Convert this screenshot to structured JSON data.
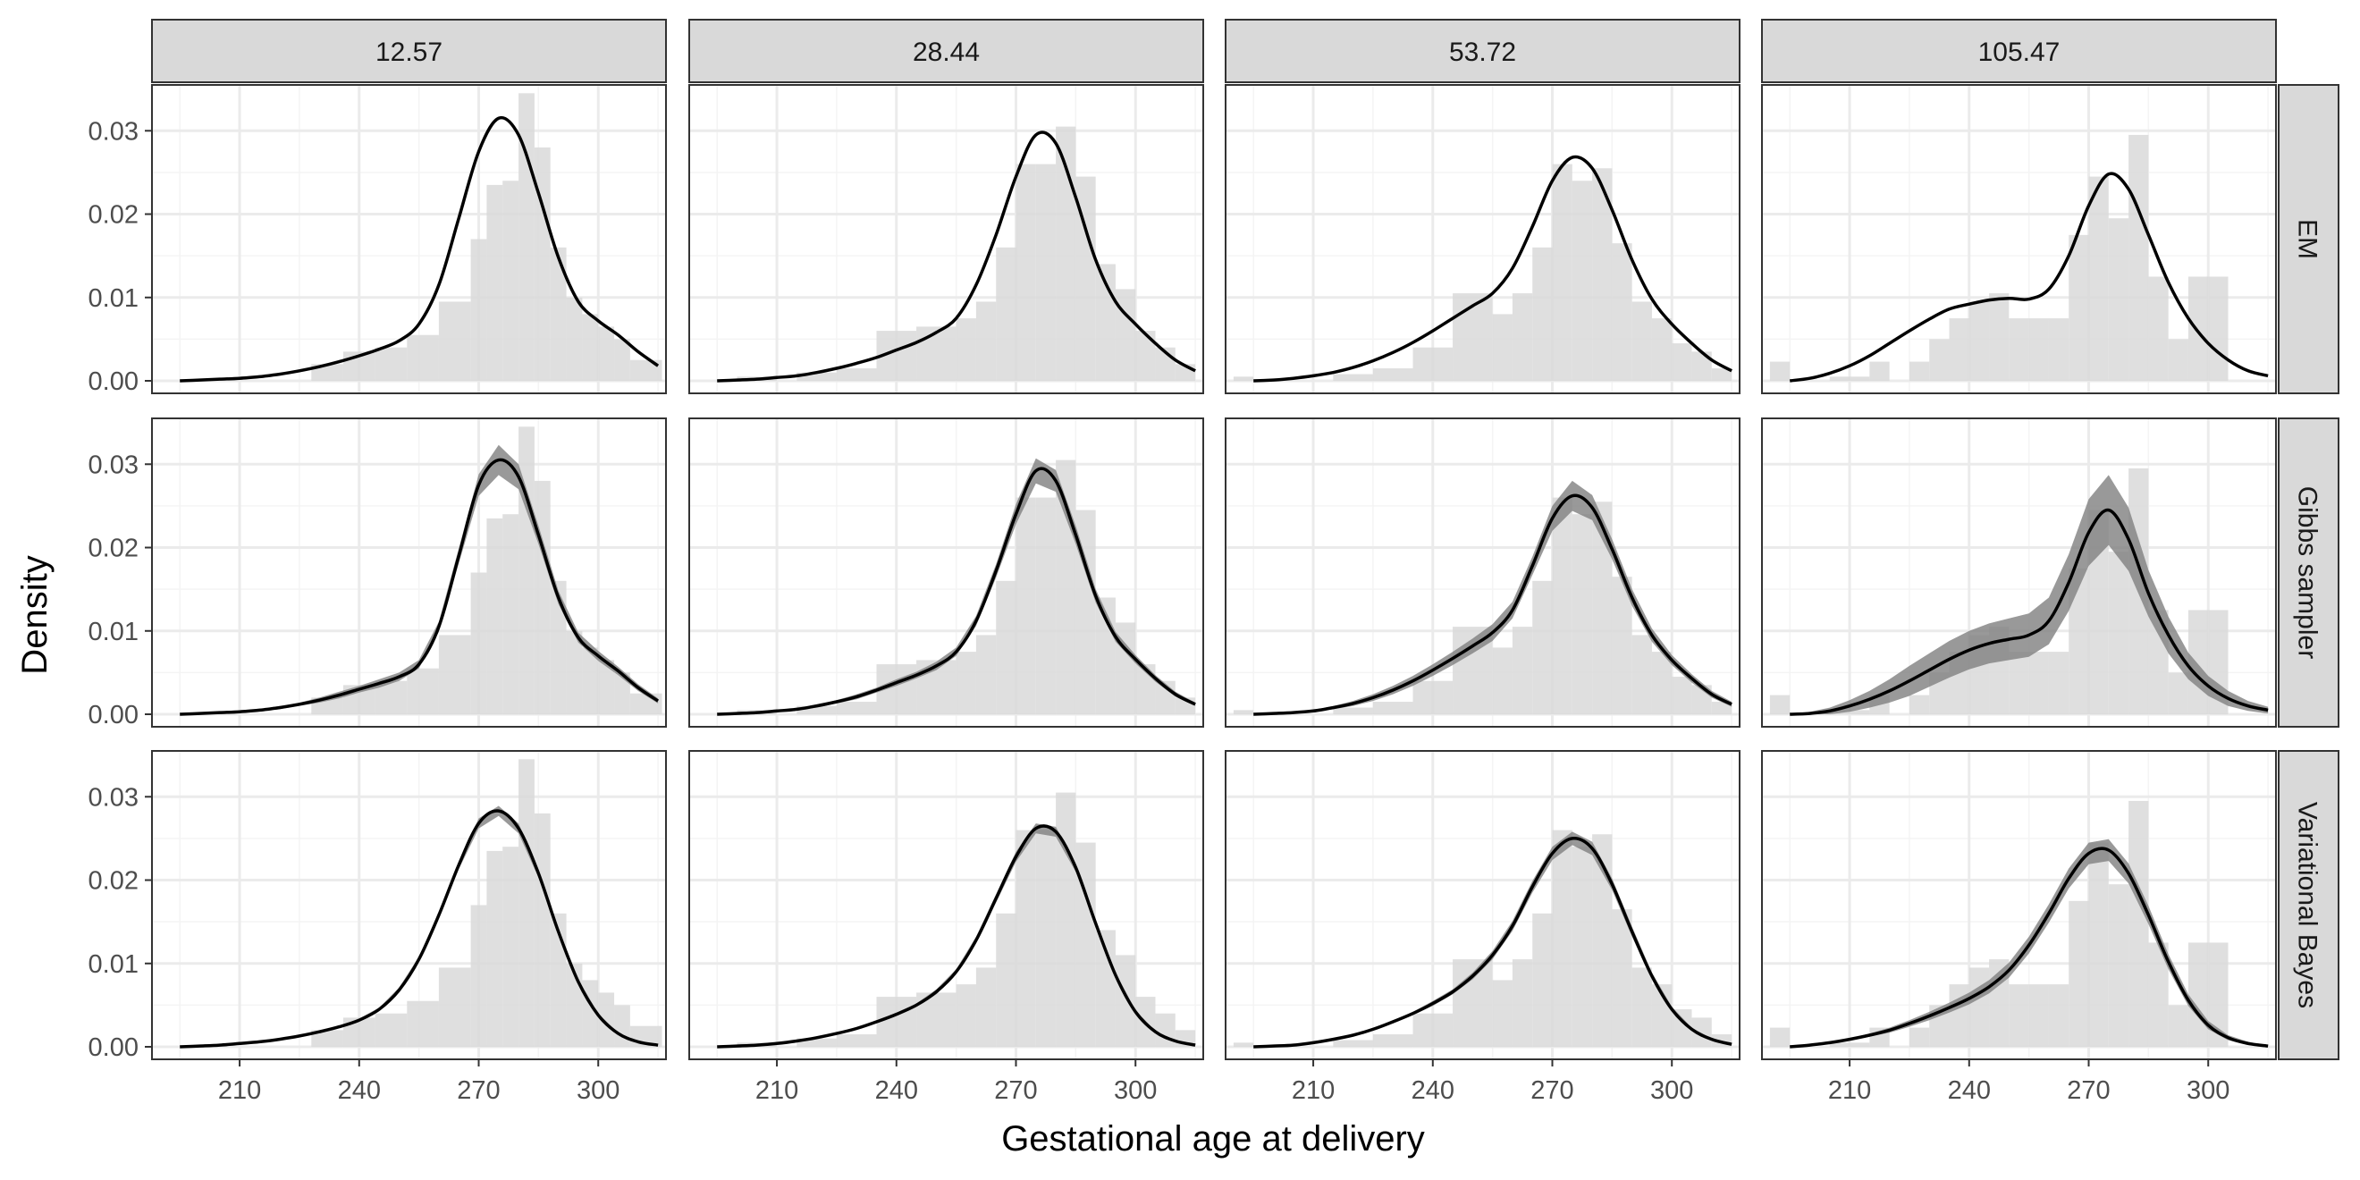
{
  "chart_data": {
    "type": "histogram-density-facets",
    "xlabel": "Gestational age at delivery",
    "ylabel": "Density",
    "columns": [
      "12.57",
      "28.44",
      "53.72",
      "105.47"
    ],
    "rows": [
      "EM",
      "Gibbs sampler",
      "Variational Bayes"
    ],
    "xlim": [
      188,
      317
    ],
    "ylim": [
      -0.0015,
      0.0355
    ],
    "x_ticks": [
      210,
      240,
      270,
      300
    ],
    "x_tick_labels": [
      "210",
      "240",
      "270",
      "300"
    ],
    "y_ticks": [
      0,
      0.01,
      0.02,
      0.03
    ],
    "y_tick_labels": [
      "0.00",
      "0.01",
      "0.02",
      "0.03"
    ],
    "grid": true,
    "colors": {
      "panel_border": "#333333",
      "strip_fill": "#d9d9d9",
      "grid_major": "#ebebeb",
      "grid_minor": "#f4f4f4",
      "histogram": "#d9d9d9",
      "band": "#7f7f7f",
      "curve": "#000000"
    },
    "histograms": [
      {
        "column": "12.57",
        "bins": [
          [
            228,
            236,
            0.002
          ],
          [
            236,
            244,
            0.0035
          ],
          [
            244,
            252,
            0.004
          ],
          [
            252,
            260,
            0.0055
          ],
          [
            260,
            268,
            0.0095
          ],
          [
            268,
            272,
            0.017
          ],
          [
            272,
            276,
            0.0235
          ],
          [
            276,
            280,
            0.024
          ],
          [
            280,
            284,
            0.0345
          ],
          [
            284,
            288,
            0.028
          ],
          [
            288,
            292,
            0.016
          ],
          [
            292,
            296,
            0.01
          ],
          [
            296,
            300,
            0.008
          ],
          [
            300,
            304,
            0.0065
          ],
          [
            304,
            308,
            0.005
          ],
          [
            308,
            316,
            0.0025
          ]
        ]
      },
      {
        "column": "28.44",
        "bins": [
          [
            200,
            210,
            0.0005
          ],
          [
            215,
            225,
            0.001
          ],
          [
            225,
            235,
            0.0015
          ],
          [
            235,
            245,
            0.006
          ],
          [
            245,
            255,
            0.0065
          ],
          [
            255,
            260,
            0.0075
          ],
          [
            260,
            265,
            0.0095
          ],
          [
            265,
            270,
            0.016
          ],
          [
            270,
            275,
            0.026
          ],
          [
            275,
            280,
            0.026
          ],
          [
            280,
            285,
            0.0305
          ],
          [
            285,
            290,
            0.0245
          ],
          [
            290,
            295,
            0.014
          ],
          [
            295,
            300,
            0.011
          ],
          [
            300,
            305,
            0.006
          ],
          [
            305,
            310,
            0.004
          ],
          [
            310,
            315,
            0.002
          ]
        ]
      },
      {
        "column": "53.72",
        "bins": [
          [
            190,
            195,
            0.0005
          ],
          [
            215,
            225,
            0.0008
          ],
          [
            225,
            235,
            0.0015
          ],
          [
            235,
            245,
            0.004
          ],
          [
            245,
            255,
            0.0105
          ],
          [
            255,
            260,
            0.008
          ],
          [
            260,
            265,
            0.0105
          ],
          [
            265,
            270,
            0.016
          ],
          [
            270,
            275,
            0.026
          ],
          [
            275,
            280,
            0.024
          ],
          [
            280,
            285,
            0.0255
          ],
          [
            285,
            290,
            0.0165
          ],
          [
            290,
            295,
            0.0095
          ],
          [
            295,
            300,
            0.0075
          ],
          [
            300,
            305,
            0.0045
          ],
          [
            305,
            310,
            0.0035
          ],
          [
            310,
            315,
            0.0015
          ]
        ]
      },
      {
        "column": "105.47",
        "bins": [
          [
            190,
            195,
            0.0023
          ],
          [
            205,
            210,
            0.0005
          ],
          [
            210,
            215,
            0.0005
          ],
          [
            215,
            220,
            0.0023
          ],
          [
            225,
            230,
            0.0023
          ],
          [
            230,
            235,
            0.005
          ],
          [
            235,
            240,
            0.0075
          ],
          [
            240,
            245,
            0.0095
          ],
          [
            245,
            250,
            0.0105
          ],
          [
            250,
            255,
            0.0075
          ],
          [
            255,
            260,
            0.0075
          ],
          [
            260,
            265,
            0.0075
          ],
          [
            265,
            270,
            0.0175
          ],
          [
            270,
            275,
            0.0245
          ],
          [
            275,
            280,
            0.0195
          ],
          [
            280,
            285,
            0.0295
          ],
          [
            285,
            290,
            0.0125
          ],
          [
            290,
            295,
            0.005
          ],
          [
            295,
            300,
            0.0125
          ],
          [
            300,
            305,
            0.0125
          ]
        ]
      }
    ],
    "curves": {
      "x": [
        195,
        200,
        205,
        210,
        215,
        220,
        225,
        230,
        235,
        240,
        245,
        250,
        255,
        260,
        265,
        270,
        275,
        280,
        285,
        290,
        295,
        300,
        305,
        310,
        315
      ],
      "EM": [
        [
          0,
          0.0001,
          0.0002,
          0.0003,
          0.0005,
          0.0008,
          0.0012,
          0.0017,
          0.0023,
          0.003,
          0.0038,
          0.0048,
          0.0068,
          0.0115,
          0.0195,
          0.0275,
          0.0315,
          0.0295,
          0.0225,
          0.0148,
          0.0095,
          0.0072,
          0.0055,
          0.0035,
          0.0018
        ],
        [
          0,
          0.0001,
          0.0002,
          0.0004,
          0.0006,
          0.001,
          0.0015,
          0.0021,
          0.0028,
          0.0037,
          0.0046,
          0.0058,
          0.0075,
          0.0115,
          0.0175,
          0.0245,
          0.0295,
          0.0285,
          0.022,
          0.0145,
          0.0095,
          0.0068,
          0.0045,
          0.0025,
          0.0012
        ],
        [
          0,
          0.0001,
          0.0003,
          0.0006,
          0.001,
          0.0016,
          0.0024,
          0.0034,
          0.0046,
          0.006,
          0.0075,
          0.009,
          0.0105,
          0.0135,
          0.0185,
          0.024,
          0.0268,
          0.0255,
          0.0205,
          0.0145,
          0.0098,
          0.0068,
          0.0045,
          0.0025,
          0.0012
        ],
        [
          0,
          0.0003,
          0.0009,
          0.0018,
          0.003,
          0.0045,
          0.006,
          0.0074,
          0.0086,
          0.0092,
          0.0097,
          0.0099,
          0.0098,
          0.011,
          0.015,
          0.021,
          0.0248,
          0.023,
          0.0175,
          0.0118,
          0.0075,
          0.0045,
          0.0025,
          0.0012,
          0.0006
        ]
      ],
      "Gibbs sampler": {
        "mean": [
          [
            0,
            0.0001,
            0.0002,
            0.0003,
            0.0005,
            0.0008,
            0.0012,
            0.0017,
            0.0023,
            0.003,
            0.0037,
            0.0045,
            0.006,
            0.0105,
            0.019,
            0.0275,
            0.0305,
            0.0285,
            0.0215,
            0.014,
            0.0092,
            0.007,
            0.0052,
            0.0032,
            0.0016
          ],
          [
            0,
            0.0001,
            0.0002,
            0.0004,
            0.0006,
            0.001,
            0.0015,
            0.0021,
            0.0029,
            0.0038,
            0.0047,
            0.0058,
            0.0075,
            0.0112,
            0.0172,
            0.024,
            0.0292,
            0.028,
            0.0215,
            0.0142,
            0.0093,
            0.0066,
            0.0043,
            0.0024,
            0.0012
          ],
          [
            0,
            0.0001,
            0.0002,
            0.0004,
            0.0008,
            0.0013,
            0.002,
            0.0029,
            0.004,
            0.0053,
            0.0067,
            0.0082,
            0.0098,
            0.0125,
            0.0178,
            0.0235,
            0.0262,
            0.0248,
            0.0198,
            0.014,
            0.0095,
            0.0065,
            0.0043,
            0.0024,
            0.0012
          ],
          [
            0,
            0.0001,
            0.0004,
            0.001,
            0.0018,
            0.0028,
            0.004,
            0.0053,
            0.0066,
            0.0077,
            0.0085,
            0.009,
            0.0095,
            0.0112,
            0.0158,
            0.0218,
            0.0245,
            0.021,
            0.0145,
            0.0095,
            0.0058,
            0.0034,
            0.0019,
            0.001,
            0.0005
          ]
        ],
        "half_width": [
          [
            0,
            0,
            0,
            0.0001,
            0.0001,
            0.0002,
            0.0002,
            0.0003,
            0.0004,
            0.0004,
            0.0005,
            0.0005,
            0.0005,
            0.0006,
            0.0009,
            0.0013,
            0.0018,
            0.0015,
            0.0011,
            0.0008,
            0.0006,
            0.0006,
            0.0005,
            0.0004,
            0.0003
          ],
          [
            0,
            0,
            0,
            0.0001,
            0.0001,
            0.0002,
            0.0002,
            0.0003,
            0.0003,
            0.0004,
            0.0004,
            0.0005,
            0.0005,
            0.0006,
            0.0008,
            0.0012,
            0.0015,
            0.0013,
            0.0011,
            0.0008,
            0.0006,
            0.0005,
            0.0004,
            0.0003,
            0.0002
          ],
          [
            0,
            0,
            0.0001,
            0.0001,
            0.0002,
            0.0003,
            0.0004,
            0.0005,
            0.0006,
            0.0007,
            0.0008,
            0.0009,
            0.001,
            0.001,
            0.0011,
            0.0015,
            0.0018,
            0.0015,
            0.0012,
            0.001,
            0.0008,
            0.0006,
            0.0005,
            0.0004,
            0.0003
          ],
          [
            0,
            0.0002,
            0.0004,
            0.0007,
            0.001,
            0.0014,
            0.0018,
            0.002,
            0.0022,
            0.0023,
            0.0024,
            0.0025,
            0.0026,
            0.0028,
            0.0034,
            0.004,
            0.0042,
            0.0038,
            0.0028,
            0.0022,
            0.0016,
            0.0012,
            0.0009,
            0.0006,
            0.0004
          ]
        ]
      },
      "Variational Bayes": {
        "mean": [
          [
            0,
            0.0001,
            0.0002,
            0.0004,
            0.0006,
            0.0009,
            0.0013,
            0.0018,
            0.0024,
            0.0032,
            0.0045,
            0.0068,
            0.0105,
            0.0158,
            0.0218,
            0.0268,
            0.0283,
            0.0262,
            0.0208,
            0.0138,
            0.0078,
            0.0038,
            0.0016,
            0.0006,
            0.0002
          ],
          [
            0,
            0.0001,
            0.0002,
            0.0004,
            0.0007,
            0.0011,
            0.0016,
            0.0022,
            0.003,
            0.0039,
            0.005,
            0.0066,
            0.009,
            0.0128,
            0.0178,
            0.0228,
            0.0262,
            0.0258,
            0.0215,
            0.0148,
            0.0086,
            0.0042,
            0.0018,
            0.0007,
            0.0002
          ],
          [
            0,
            0.0001,
            0.0002,
            0.0005,
            0.0009,
            0.0014,
            0.0021,
            0.003,
            0.004,
            0.0052,
            0.0066,
            0.0085,
            0.011,
            0.0145,
            0.0192,
            0.0232,
            0.025,
            0.0238,
            0.0195,
            0.0138,
            0.0085,
            0.0045,
            0.0021,
            0.0009,
            0.0003
          ],
          [
            0,
            0.0002,
            0.0005,
            0.0009,
            0.0014,
            0.002,
            0.0028,
            0.0037,
            0.0047,
            0.0058,
            0.0072,
            0.0092,
            0.0122,
            0.016,
            0.0202,
            0.0232,
            0.0236,
            0.0208,
            0.0158,
            0.0102,
            0.0056,
            0.0026,
            0.0011,
            0.0004,
            0.0001
          ]
        ],
        "half_width": [
          [
            0,
            0,
            0,
            0,
            0,
            0.0001,
            0.0001,
            0.0001,
            0.0001,
            0.0002,
            0.0002,
            0.0003,
            0.0003,
            0.0004,
            0.0005,
            0.0006,
            0.0006,
            0.0006,
            0.0005,
            0.0004,
            0.0003,
            0.0002,
            0.0001,
            0.0001,
            0
          ],
          [
            0,
            0,
            0,
            0,
            0,
            0.0001,
            0.0001,
            0.0001,
            0.0002,
            0.0002,
            0.0002,
            0.0003,
            0.0003,
            0.0004,
            0.0005,
            0.0006,
            0.0006,
            0.0006,
            0.0005,
            0.0004,
            0.0003,
            0.0002,
            0.0001,
            0.0001,
            0
          ],
          [
            0,
            0,
            0,
            0,
            0.0001,
            0.0001,
            0.0001,
            0.0002,
            0.0002,
            0.0003,
            0.0003,
            0.0004,
            0.0005,
            0.0006,
            0.0007,
            0.0008,
            0.0008,
            0.0008,
            0.0007,
            0.0006,
            0.0004,
            0.0003,
            0.0002,
            0.0001,
            0
          ],
          [
            0,
            0,
            0.0001,
            0.0001,
            0.0002,
            0.0003,
            0.0004,
            0.0005,
            0.0006,
            0.0007,
            0.0008,
            0.0009,
            0.001,
            0.0011,
            0.0012,
            0.0013,
            0.0013,
            0.0012,
            0.0011,
            0.0009,
            0.0007,
            0.0005,
            0.0003,
            0.0002,
            0.0001
          ]
        ]
      }
    }
  }
}
